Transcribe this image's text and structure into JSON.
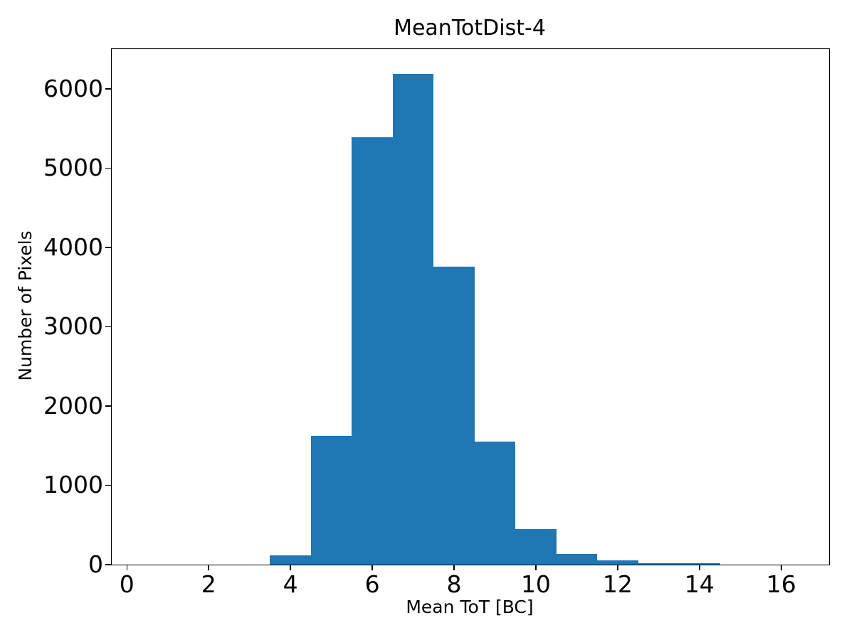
{
  "chart_data": {
    "type": "bar",
    "subtype": "histogram",
    "title": "MeanTotDist-4",
    "xlabel": "Mean ToT [BC]",
    "ylabel": "Number of Pixels",
    "bin_edges": [
      3.5,
      4.5,
      5.5,
      6.5,
      7.5,
      8.5,
      9.5,
      10.5,
      11.5,
      12.5,
      13.5,
      14.5
    ],
    "counts": [
      120,
      1620,
      5390,
      6190,
      3760,
      1550,
      445,
      135,
      55,
      20,
      15
    ],
    "x_ticks": [
      0,
      2,
      4,
      6,
      8,
      10,
      12,
      14,
      16
    ],
    "y_ticks": [
      0,
      1000,
      2000,
      3000,
      4000,
      5000,
      6000
    ],
    "xlim": [
      -0.37,
      17.17
    ],
    "ylim": [
      0,
      6500
    ],
    "bar_color": "#1f77b4",
    "axis_color": "#000000",
    "background_color": "#ffffff",
    "grid": false,
    "legend": null
  }
}
